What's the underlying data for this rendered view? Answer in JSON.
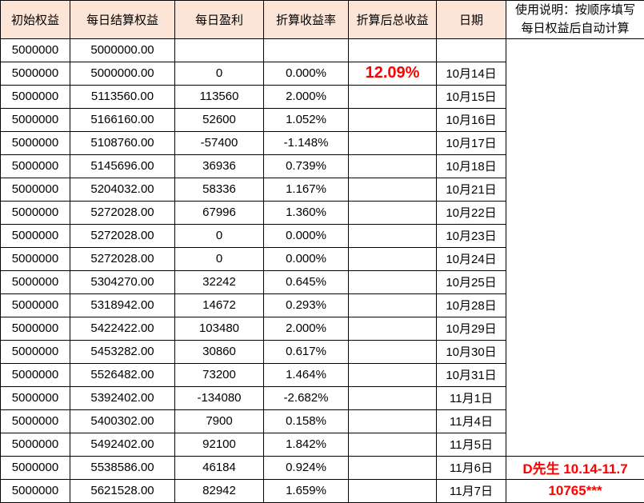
{
  "table": {
    "headers": [
      "初始权益",
      "每日结算权益",
      "每日盈利",
      "折算收益率",
      "折算后总收益",
      "日期"
    ],
    "rows": [
      [
        "5000000",
        "5000000.00",
        "",
        "",
        "",
        ""
      ],
      [
        "5000000",
        "5000000.00",
        "0",
        "0.000%",
        "12.09%",
        "10月14日"
      ],
      [
        "5000000",
        "5113560.00",
        "113560",
        "2.000%",
        "",
        "10月15日"
      ],
      [
        "5000000",
        "5166160.00",
        "52600",
        "1.052%",
        "",
        "10月16日"
      ],
      [
        "5000000",
        "5108760.00",
        "-57400",
        "-1.148%",
        "",
        "10月17日"
      ],
      [
        "5000000",
        "5145696.00",
        "36936",
        "0.739%",
        "",
        "10月18日"
      ],
      [
        "5000000",
        "5204032.00",
        "58336",
        "1.167%",
        "",
        "10月21日"
      ],
      [
        "5000000",
        "5272028.00",
        "67996",
        "1.360%",
        "",
        "10月22日"
      ],
      [
        "5000000",
        "5272028.00",
        "0",
        "0.000%",
        "",
        "10月23日"
      ],
      [
        "5000000",
        "5272028.00",
        "0",
        "0.000%",
        "",
        "10月24日"
      ],
      [
        "5000000",
        "5304270.00",
        "32242",
        "0.645%",
        "",
        "10月25日"
      ],
      [
        "5000000",
        "5318942.00",
        "14672",
        "0.293%",
        "",
        "10月28日"
      ],
      [
        "5000000",
        "5422422.00",
        "103480",
        "2.000%",
        "",
        "10月29日"
      ],
      [
        "5000000",
        "5453282.00",
        "30860",
        "0.617%",
        "",
        "10月30日"
      ],
      [
        "5000000",
        "5526482.00",
        "73200",
        "1.464%",
        "",
        "10月31日"
      ],
      [
        "5000000",
        "5392402.00",
        "-134080",
        "-2.682%",
        "",
        "11月1日"
      ],
      [
        "5000000",
        "5400302.00",
        "7900",
        "0.158%",
        "",
        "11月4日"
      ],
      [
        "5000000",
        "5492402.00",
        "92100",
        "1.842%",
        "",
        "11月5日"
      ],
      [
        "5000000",
        "5538586.00",
        "46184",
        "0.924%",
        "",
        "11月6日"
      ],
      [
        "5000000",
        "5621528.00",
        "82942",
        "1.659%",
        "",
        "11月7日"
      ]
    ],
    "highlight_cell": {
      "row": 1,
      "col": 4,
      "value": "12.09%"
    }
  },
  "notes": {
    "instruction": "使用说明：按顺序填写每日权益后自动计算",
    "trader_period": "D先生 10.14-11.7",
    "account": "10765***",
    "trader_period_row": 18,
    "account_row": 19
  },
  "colors": {
    "header_bg": "#FCE4D6",
    "highlight_red": "#FF0000",
    "border": "#000000"
  }
}
